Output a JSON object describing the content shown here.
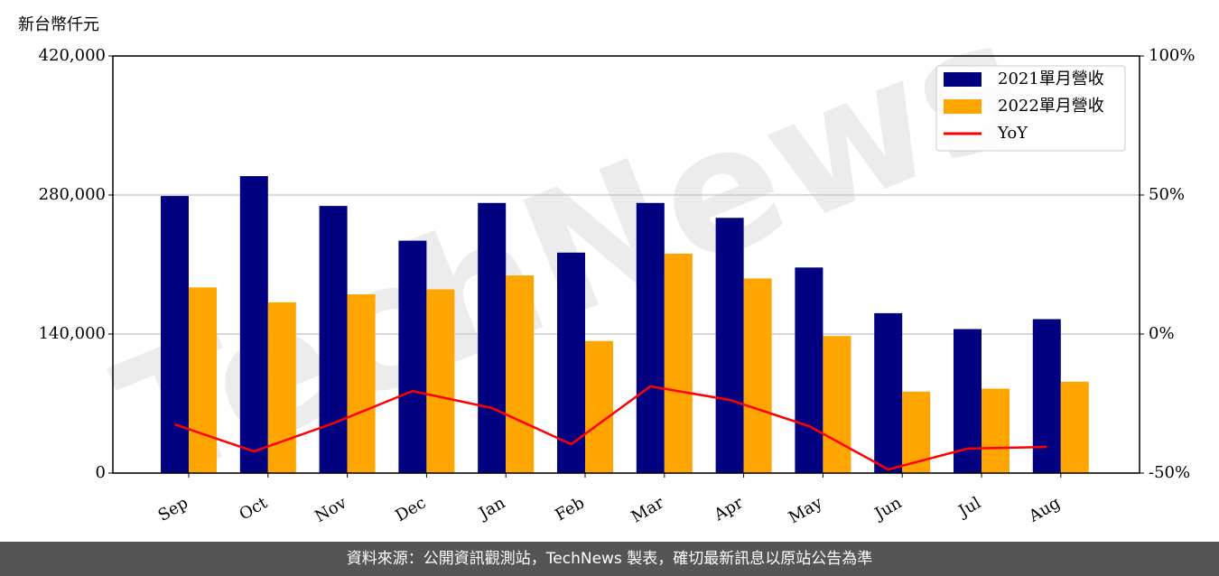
{
  "chart_data": {
    "type": "bar",
    "y_label": "新台幣仟元",
    "watermark": "TechNews",
    "footer": "資料來源：公開資訊觀測站，TechNews 製表，確切最新訊息以原站公告為準",
    "categories": [
      "Sep",
      "Oct",
      "Nov",
      "Dec",
      "Jan",
      "Feb",
      "Mar",
      "Apr",
      "May",
      "Jun",
      "Jul",
      "Aug"
    ],
    "series": [
      {
        "name": "2021單月營收",
        "color": "#000080",
        "values": [
          279000,
          299000,
          269000,
          234000,
          272000,
          222000,
          272000,
          257000,
          207000,
          161000,
          145000,
          155000
        ]
      },
      {
        "name": "2022單月營收",
        "color": "#ffa500",
        "values": [
          187000,
          172000,
          180000,
          185000,
          199000,
          133000,
          221000,
          196000,
          138000,
          82000,
          85000,
          92000
        ]
      },
      {
        "name": "YoY",
        "type": "line",
        "axis": "y2",
        "color": "#ff0000",
        "values": [
          -32.5,
          -42.2,
          -32.1,
          -20.5,
          -26.6,
          -39.6,
          -18.8,
          -23.7,
          -33.1,
          -48.7,
          -41.2,
          -40.6
        ]
      }
    ],
    "ylim": [
      0,
      420000
    ],
    "yticks": [
      0,
      {
        "value": 140000,
        "label": "140,000"
      },
      {
        "value": 280000,
        "label": "280,000"
      },
      {
        "value": 420000,
        "label": "420,000"
      }
    ],
    "y2lim": [
      -50,
      100
    ],
    "y2ticks": [
      {
        "value": -50,
        "label": "-50%"
      },
      {
        "value": 0,
        "label": "0%"
      },
      {
        "value": 50,
        "label": "50%"
      },
      {
        "value": 100,
        "label": "100%"
      }
    ],
    "grid": true,
    "legend": "upper right"
  }
}
